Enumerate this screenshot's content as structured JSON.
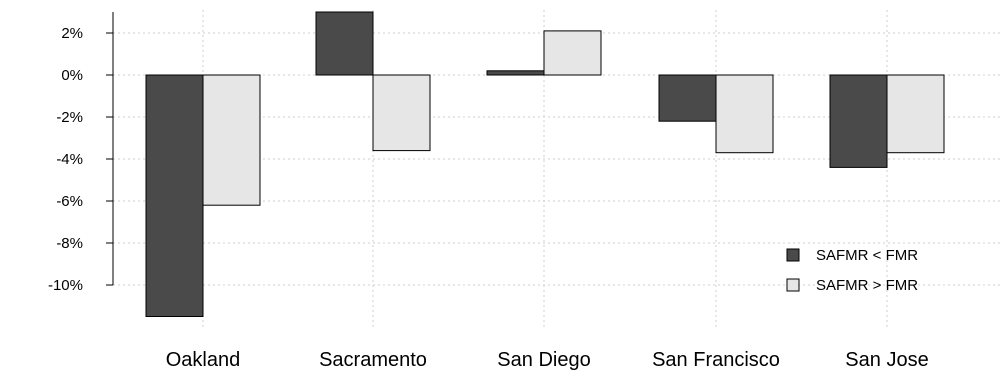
{
  "chart_data": {
    "type": "bar",
    "categories": [
      "Oakland",
      "Sacramento",
      "San Diego",
      "San Francisco",
      "San Jose"
    ],
    "series": [
      {
        "name": "SAFMR < FMR",
        "color": "#4a4a4a",
        "values": [
          -11.5,
          3.0,
          0.2,
          -2.2,
          -4.4
        ]
      },
      {
        "name": "SAFMR > FMR",
        "color": "#e6e6e6",
        "values": [
          -6.2,
          -3.6,
          2.1,
          -3.7,
          -3.7
        ]
      }
    ],
    "yticks": [
      "2%",
      "0%",
      "-2%",
      "-4%",
      "-6%",
      "-8%",
      "-10%"
    ],
    "ytick_values": [
      2,
      0,
      -2,
      -4,
      -6,
      -8,
      -10
    ],
    "ylim": [
      -11.5,
      3.0
    ],
    "grid": true,
    "legend_position": "bottom-right",
    "title": "",
    "xlabel": "",
    "ylabel": ""
  }
}
